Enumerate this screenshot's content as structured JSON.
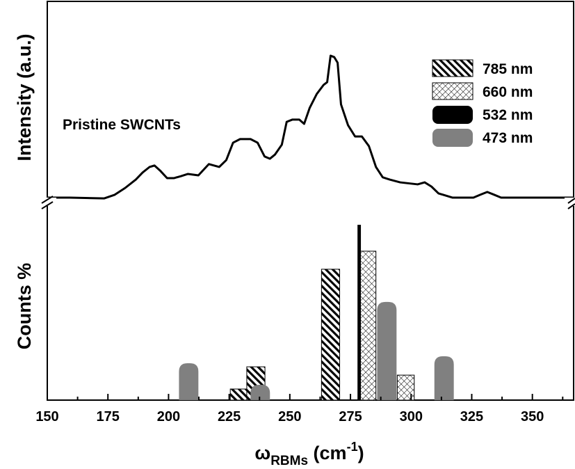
{
  "chart_data": [
    {
      "type": "line",
      "ylabel": "Intensity (a.u.)",
      "annotation": "Pristine SWCNTs",
      "color": "#000000",
      "x": [
        150.0,
        159.2,
        173.5,
        177.8,
        182.1,
        186.5,
        189.3,
        192.2,
        194.2,
        196.5,
        199.4,
        202.2,
        205.1,
        208.0,
        212.3,
        216.6,
        220.9,
        223.8,
        226.6,
        229.5,
        233.8,
        236.7,
        239.6,
        241.8,
        243.9,
        246.7,
        248.7,
        251.0,
        253.9,
        255.9,
        258.2,
        261.1,
        263.9,
        265.4,
        266.8,
        268.3,
        269.7,
        271.1,
        274.0,
        276.9,
        279.7,
        282.6,
        285.5,
        288.3,
        291.2,
        295.5,
        302.7,
        305.6,
        308.4,
        311.3,
        317.0,
        325.7,
        328.5,
        331.4,
        334.3,
        337.1,
        367.0
      ],
      "values": [
        2.1,
        2.1,
        1.7,
        3.5,
        6.9,
        11.1,
        14.6,
        17.4,
        18.1,
        15.6,
        11.8,
        11.8,
        12.8,
        13.9,
        13.2,
        18.8,
        17.4,
        20.8,
        29.5,
        31.3,
        31.3,
        29.5,
        22.6,
        21.5,
        23.6,
        28.5,
        39.9,
        41.0,
        41.0,
        38.9,
        46.9,
        53.8,
        58.3,
        59.7,
        72.9,
        72.2,
        69.4,
        48.6,
        38.2,
        32.6,
        32.6,
        27.8,
        17.4,
        12.2,
        11.1,
        9.7,
        8.7,
        9.7,
        7.6,
        4.2,
        2.1,
        2.1,
        3.5,
        4.9,
        3.5,
        2.1,
        2.1
      ],
      "ylim": [
        0,
        100
      ]
    },
    {
      "type": "bar",
      "ylabel": "Counts %",
      "xlabel": {
        "symbol": "ω",
        "sub": "RBMs",
        "unit": " (cm",
        "sup": "-1",
        "close": ")"
      },
      "xlim": [
        150,
        367
      ],
      "xticks": [
        150,
        175,
        200,
        225,
        250,
        275,
        300,
        325,
        350
      ],
      "xminorticks": [
        162.5,
        187.5,
        212.5,
        237.5,
        262.5,
        287.5,
        312.5,
        337.5,
        362.5
      ],
      "ylim": [
        0,
        100
      ],
      "legend": "top-right",
      "series": [
        {
          "name": "785 nm",
          "color": "#000000",
          "pattern": "backslash",
          "x": [
            229.2,
            236.0,
            266.8
          ],
          "values": [
            5.6,
            16.8,
            66.0
          ]
        },
        {
          "name": "660 nm",
          "color": "#000000",
          "pattern": "crosshatch",
          "x": [
            282.0,
            297.8
          ],
          "values": [
            75.1,
            12.6
          ]
        },
        {
          "name": "532 nm",
          "color": "#000000",
          "pattern": "line",
          "x": [
            278.6
          ],
          "values": [
            88.4
          ]
        },
        {
          "name": "473 nm",
          "color": "#808080",
          "pattern": "rounded",
          "x": [
            208.3,
            237.8,
            290.0,
            313.6
          ],
          "values": [
            18.6,
            7.7,
            49.5,
            22.1
          ]
        }
      ]
    }
  ]
}
